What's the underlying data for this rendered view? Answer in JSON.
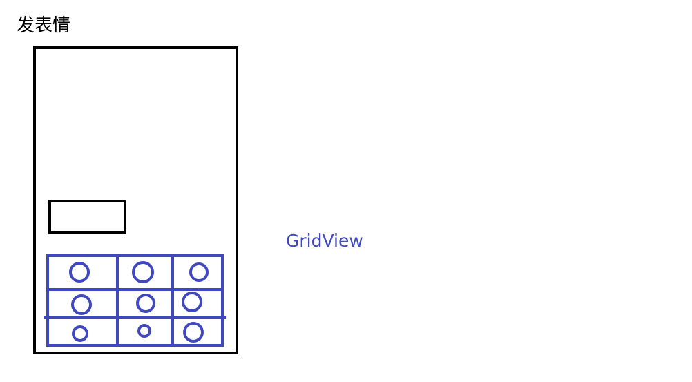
{
  "title": "发表情",
  "gridview_label": "GridView",
  "colors": {
    "outline": "#000000",
    "gridview": "#4048c0",
    "background": "#ffffff"
  },
  "phone": {
    "name": "phone-frame"
  },
  "input_box": {
    "name": "text-input-box"
  },
  "grid": {
    "rows": 3,
    "columns": 3,
    "cells": [
      {
        "row": 1,
        "col": 1,
        "icon": "emoji-circle"
      },
      {
        "row": 1,
        "col": 2,
        "icon": "emoji-circle"
      },
      {
        "row": 1,
        "col": 3,
        "icon": "emoji-circle"
      },
      {
        "row": 2,
        "col": 1,
        "icon": "emoji-circle"
      },
      {
        "row": 2,
        "col": 2,
        "icon": "emoji-circle"
      },
      {
        "row": 2,
        "col": 3,
        "icon": "emoji-circle"
      },
      {
        "row": 3,
        "col": 1,
        "icon": "emoji-circle"
      },
      {
        "row": 3,
        "col": 2,
        "icon": "emoji-circle"
      },
      {
        "row": 3,
        "col": 3,
        "icon": "emoji-circle"
      }
    ]
  }
}
